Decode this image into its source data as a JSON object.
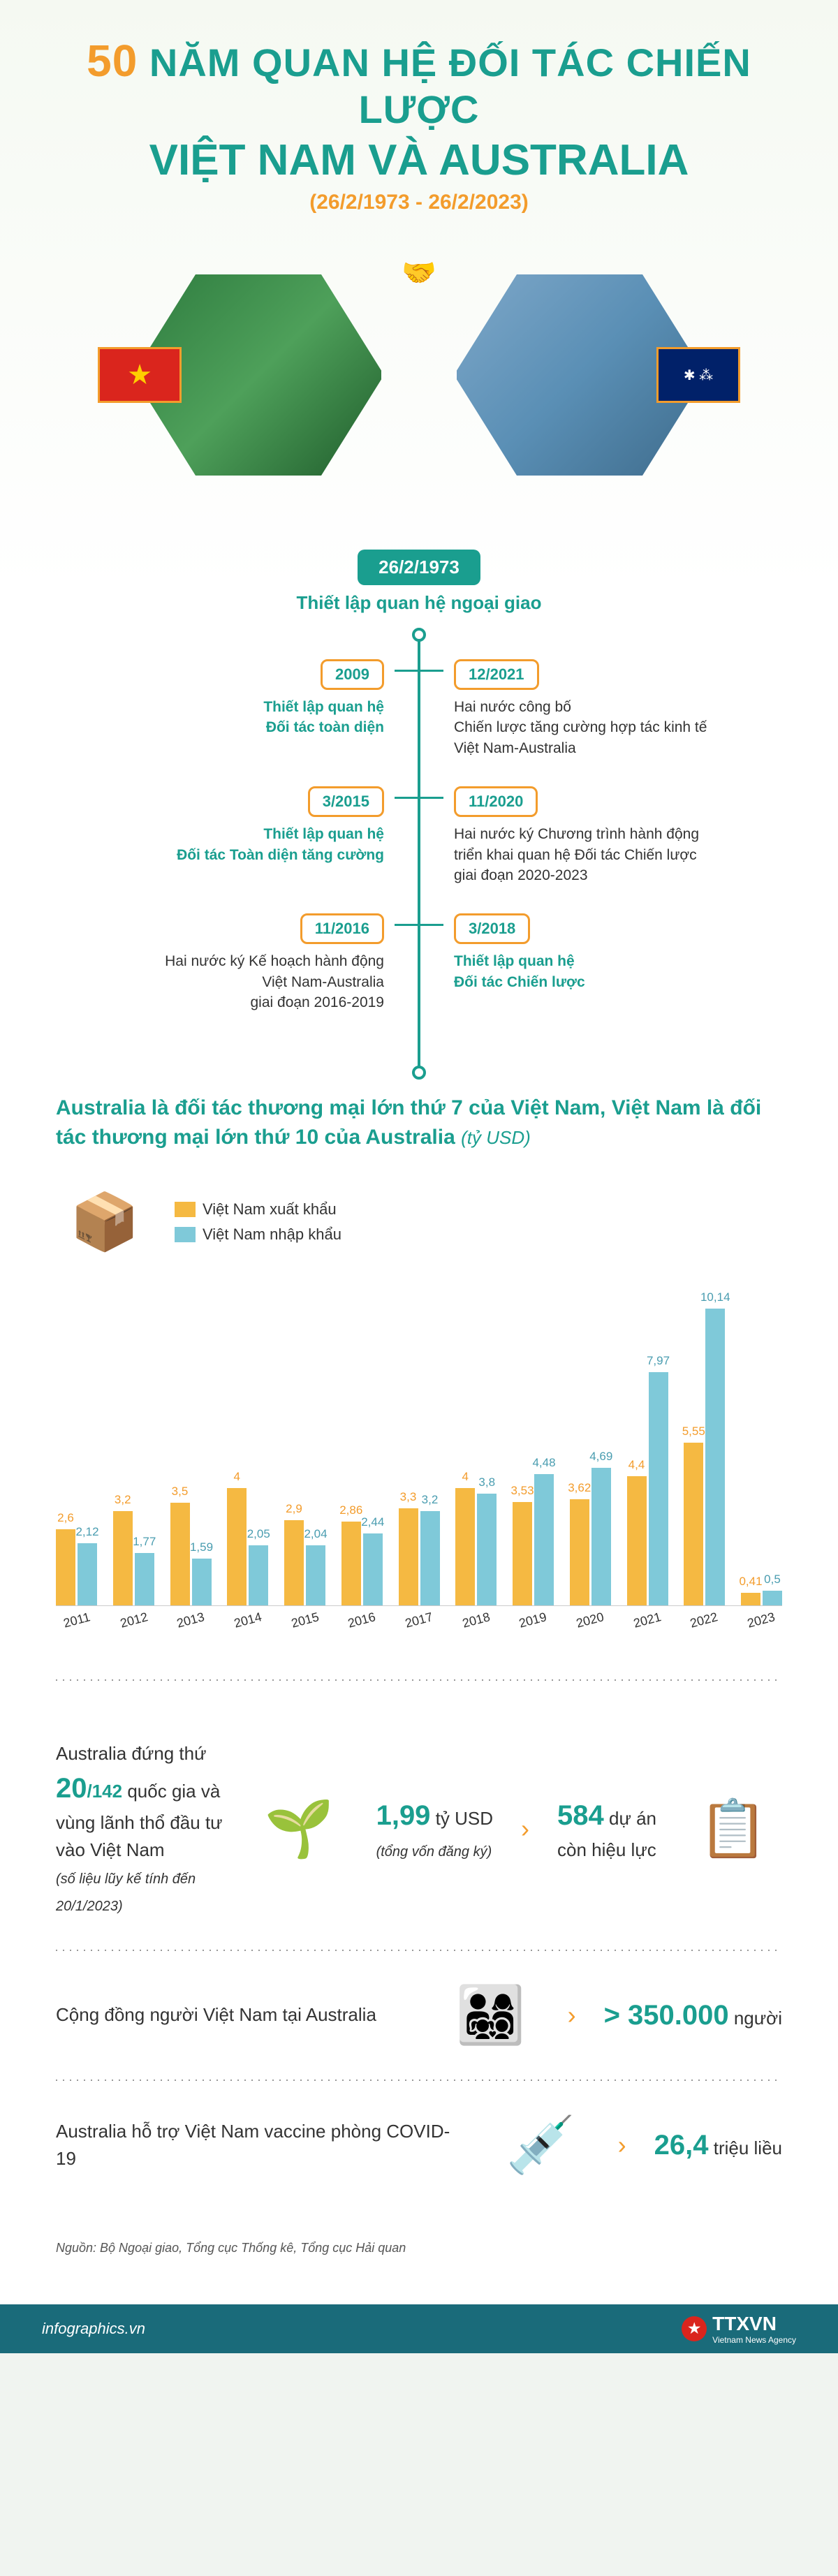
{
  "header": {
    "title_prefix": "50",
    "title_line1": " NĂM QUAN HỆ ĐỐI TÁC CHIẾN LƯỢC",
    "title_line2": "VIỆT NAM VÀ AUSTRALIA",
    "date_range": "(26/2/1973 - 26/2/2023)"
  },
  "hero": {
    "flag_vn_star": "★",
    "flag_au_text": "✱ ⁂",
    "handshake_icon": "🤝"
  },
  "timeline_top": {
    "date": "26/2/1973",
    "label": "Thiết lập quan hệ ngoại giao"
  },
  "timeline": [
    {
      "side": "right",
      "date": "12/2021",
      "text": "Hai nước công bố\nChiến lược tăng cường hợp tác kinh tế\nViệt Nam-Australia"
    },
    {
      "side": "left",
      "date": "2009",
      "text_hl": "Thiết lập quan hệ\nĐối tác toàn diện"
    },
    {
      "side": "right",
      "date": "11/2020",
      "text": "Hai nước ký Chương trình hành động\ntriển khai quan hệ Đối tác Chiến lược\ngiai đoạn 2020-2023"
    },
    {
      "side": "left",
      "date": "3/2015",
      "text_hl": "Thiết lập quan hệ\nĐối tác Toàn diện tăng cường"
    },
    {
      "side": "right",
      "date": "3/2018",
      "text_hl": "Thiết lập quan hệ\nĐối tác Chiến lược"
    },
    {
      "side": "left",
      "date": "11/2016",
      "text": "Hai nước ký Kế hoạch hành động\nViệt Nam-Australia\ngiai đoạn 2016-2019"
    }
  ],
  "trade": {
    "title": "Australia là đối tác thương mại lớn thứ 7 của Việt Nam,\nViệt Nam là đối tác thương mại lớn thứ 10 của Australia",
    "unit": "(tỷ USD)",
    "legend_export": "Việt Nam xuất khẩu",
    "legend_import": "Việt Nam nhập khẩu",
    "color_export": "#f5b942",
    "color_import": "#7fc9d9",
    "max_value": 10.5,
    "years": [
      "2011",
      "2012",
      "2013",
      "2014",
      "2015",
      "2016",
      "2017",
      "2018",
      "2019",
      "2020",
      "2021",
      "2022",
      "2023"
    ],
    "export": [
      2.6,
      3.2,
      3.5,
      4,
      2.9,
      2.86,
      3.3,
      4,
      3.53,
      3.62,
      4.4,
      5.55,
      0.41
    ],
    "import": [
      2.12,
      1.77,
      1.59,
      2.05,
      2.04,
      2.44,
      3.2,
      3.8,
      4.48,
      4.69,
      7.97,
      10.14,
      0.5
    ],
    "export_labels": [
      "2,6",
      "3,2",
      "3,5",
      "4",
      "2,9",
      "2,86",
      "3,3",
      "4",
      "3,53",
      "3,62",
      "4,4",
      "5,55",
      "0,41"
    ],
    "import_labels": [
      "2,12",
      "1,77",
      "1,59",
      "2,05",
      "2,04",
      "2,44",
      "3,2",
      "3,8",
      "4,48",
      "4,69",
      "7,97",
      "10,14",
      "0,5"
    ]
  },
  "stats": {
    "investment": {
      "prefix": "Australia đứng thứ ",
      "rank_num": "20",
      "rank_denom": "/142",
      "suffix": " quốc gia và vùng lãnh thổ đầu tư vào Việt Nam",
      "note": "(số liệu lũy kế tính đến 20/1/2023)",
      "capital_value": "1,99",
      "capital_unit": " tỷ USD",
      "capital_note": "(tổng vốn đăng ký)",
      "projects_value": "584",
      "projects_unit": " dự án",
      "projects_note": "còn hiệu lực"
    },
    "community": {
      "label": "Cộng đồng người Việt Nam tại Australia",
      "value": "> 350.000",
      "unit": " người"
    },
    "vaccine": {
      "label": "Australia hỗ trợ Việt Nam vaccine phòng COVID-19",
      "value": "26,4",
      "unit": " triệu liều"
    }
  },
  "source": "Nguồn: Bộ Ngoại giao, Tổng cục Thống kê, Tổng cục Hải quan",
  "footer": {
    "left": "infographics.vn",
    "right": "TTXVN",
    "right_sub": "Vietnam News Agency",
    "star": "★"
  },
  "colors": {
    "teal": "#1a9e8f",
    "orange": "#f39c2c",
    "footer_bg": "#1a6b7a"
  }
}
